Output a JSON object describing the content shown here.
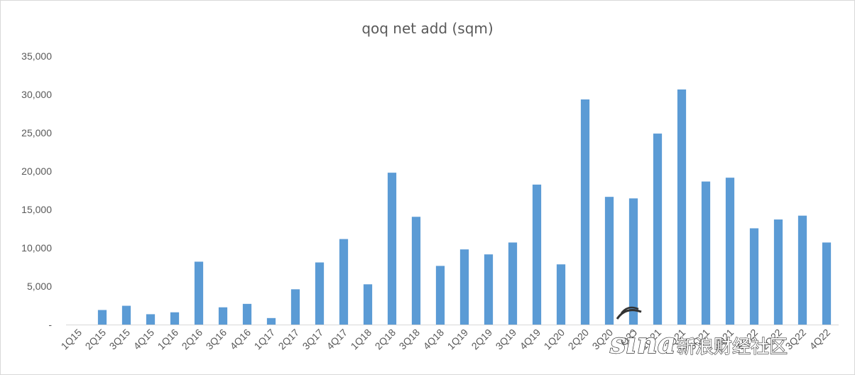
{
  "chart_data": {
    "type": "bar",
    "title": "qoq net add (sqm)",
    "xlabel": "",
    "ylabel": "",
    "ylim": [
      0,
      35000
    ],
    "yticks": [
      0,
      5000,
      10000,
      15000,
      20000,
      25000,
      30000,
      35000
    ],
    "ytick_labels": [
      "-",
      "5,000",
      "10,000",
      "15,000",
      "20,000",
      "25,000",
      "30,000",
      "35,000"
    ],
    "grid": false,
    "legend": "none",
    "bar_color": "#5b9bd5",
    "categories": [
      "1Q15",
      "2Q15",
      "3Q15",
      "4Q15",
      "1Q16",
      "2Q16",
      "3Q16",
      "4Q16",
      "1Q17",
      "2Q17",
      "3Q17",
      "4Q17",
      "1Q18",
      "2Q18",
      "3Q18",
      "4Q18",
      "1Q19",
      "2Q19",
      "3Q19",
      "4Q19",
      "1Q20",
      "2Q20",
      "3Q20",
      "4Q20",
      "1Q21",
      "2Q21",
      "3Q21",
      "4Q21",
      "1Q22",
      "2Q22",
      "3Q22",
      "4Q22"
    ],
    "values": [
      0,
      1900,
      2450,
      1350,
      1600,
      8200,
      2250,
      2700,
      850,
      4600,
      8100,
      11150,
      5250,
      19800,
      14050,
      7650,
      9800,
      9150,
      10700,
      18250,
      7850,
      29350,
      16650,
      16450,
      24900,
      30650,
      18650,
      19150,
      12550,
      13700,
      14200,
      10700
    ]
  },
  "watermark": {
    "logo": "sina",
    "text": "新浪财经社区"
  }
}
